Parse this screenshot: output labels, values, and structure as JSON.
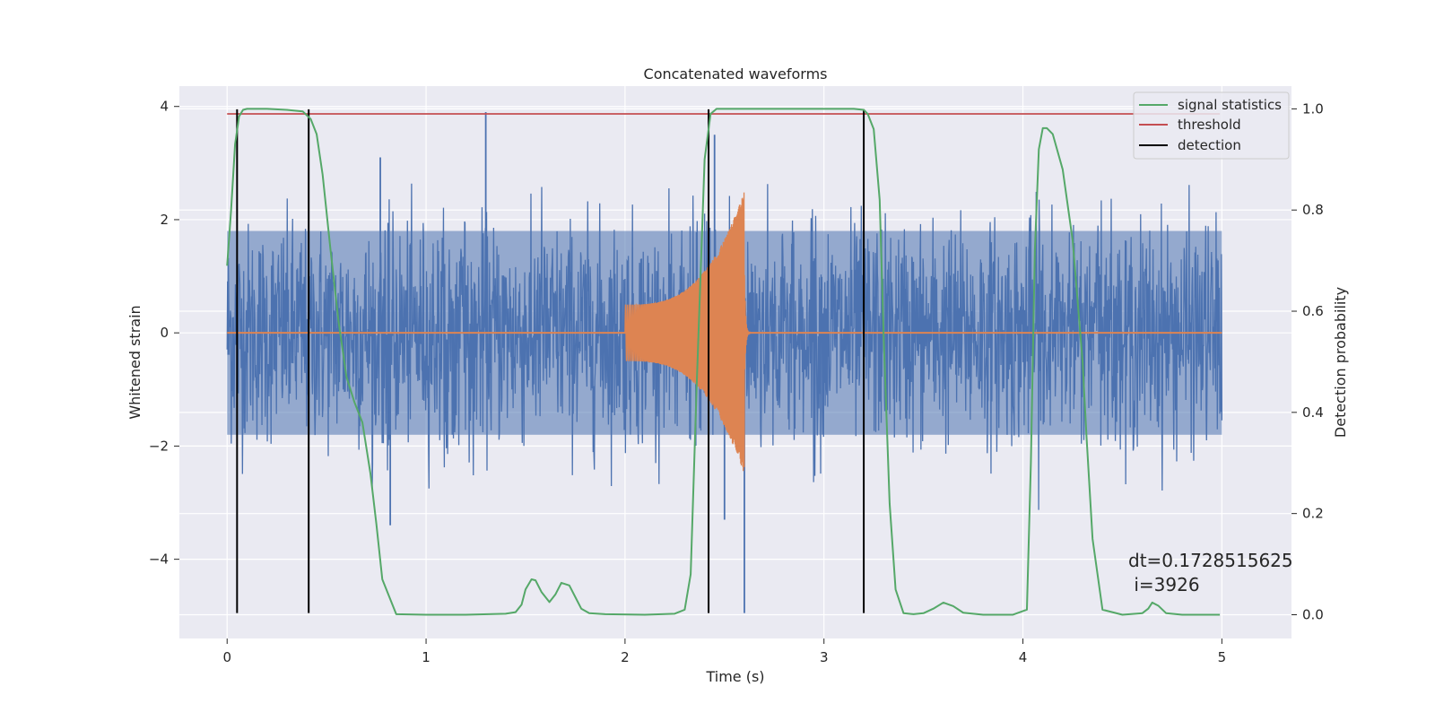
{
  "chart_data": {
    "type": "line",
    "title": "Concatenated waveforms",
    "xlabel": "Time (s)",
    "ylabel_left": "Whitened strain",
    "ylabel_right": "Detection probability",
    "xlim": [
      -0.24,
      5.35
    ],
    "ylim_left": [
      -5.4,
      4.36
    ],
    "ylim_right": [
      -0.047,
      1.045
    ],
    "xticks": [
      0,
      1,
      2,
      3,
      4,
      5
    ],
    "xtick_labels": [
      "0",
      "1",
      "2",
      "3",
      "4",
      "5"
    ],
    "yticks_left": [
      -4,
      -2,
      0,
      2,
      4
    ],
    "ytick_labels_left": [
      "−4",
      "−2",
      "0",
      "2",
      "4"
    ],
    "yticks_right": [
      0.0,
      0.2,
      0.4,
      0.6,
      0.8,
      1.0
    ],
    "ytick_labels_right": [
      "0.0",
      "0.2",
      "0.4",
      "0.6",
      "0.8",
      "1.0"
    ],
    "grid": true,
    "legend_position": "top-right",
    "legend": [
      {
        "label": "signal statistics",
        "color": "#55a868"
      },
      {
        "label": "threshold",
        "color": "#c44e52"
      },
      {
        "label": "detection",
        "color": "#000000"
      }
    ],
    "colors": {
      "strain": "#4c72b0",
      "injection": "#dd8452",
      "signal_statistics": "#55a868",
      "threshold": "#c44e52",
      "detection": "#000000",
      "axes_bg": "#eaeaf2",
      "grid": "#ffffff"
    },
    "series": [
      {
        "name": "signal statistics",
        "axis": "right",
        "x": [
          0.0,
          0.02,
          0.04,
          0.06,
          0.08,
          0.1,
          0.15,
          0.2,
          0.3,
          0.38,
          0.42,
          0.45,
          0.48,
          0.52,
          0.56,
          0.6,
          0.64,
          0.68,
          0.72,
          0.75,
          0.78,
          0.85,
          1.0,
          1.2,
          1.4,
          1.45,
          1.48,
          1.5,
          1.53,
          1.55,
          1.58,
          1.62,
          1.65,
          1.68,
          1.72,
          1.75,
          1.78,
          1.82,
          1.9,
          2.1,
          2.25,
          2.3,
          2.33,
          2.36,
          2.4,
          2.43,
          2.46,
          2.5,
          2.6,
          2.8,
          3.0,
          3.15,
          3.2,
          3.22,
          3.25,
          3.28,
          3.3,
          3.33,
          3.36,
          3.4,
          3.45,
          3.5,
          3.55,
          3.6,
          3.65,
          3.7,
          3.8,
          3.95,
          4.02,
          4.04,
          4.06,
          4.08,
          4.1,
          4.12,
          4.15,
          4.2,
          4.25,
          4.3,
          4.32,
          4.35,
          4.4,
          4.5,
          4.6,
          4.63,
          4.65,
          4.68,
          4.72,
          4.8,
          4.9,
          4.99
        ],
        "values": [
          0.69,
          0.8,
          0.93,
          0.985,
          0.998,
          1.0,
          1.0,
          1.0,
          0.998,
          0.995,
          0.98,
          0.95,
          0.87,
          0.72,
          0.58,
          0.47,
          0.42,
          0.38,
          0.28,
          0.18,
          0.07,
          0.001,
          0.0,
          0.0,
          0.002,
          0.005,
          0.02,
          0.05,
          0.07,
          0.068,
          0.045,
          0.025,
          0.04,
          0.063,
          0.058,
          0.035,
          0.012,
          0.003,
          0.001,
          0.0,
          0.002,
          0.01,
          0.08,
          0.45,
          0.9,
          0.99,
          1.0,
          1.0,
          1.0,
          1.0,
          1.0,
          1.0,
          0.998,
          0.99,
          0.96,
          0.82,
          0.55,
          0.22,
          0.05,
          0.003,
          0.001,
          0.003,
          0.012,
          0.024,
          0.017,
          0.004,
          0.0,
          0.0,
          0.01,
          0.3,
          0.72,
          0.92,
          0.962,
          0.962,
          0.95,
          0.88,
          0.74,
          0.5,
          0.35,
          0.15,
          0.01,
          0.0,
          0.003,
          0.012,
          0.024,
          0.018,
          0.003,
          0.0,
          0.0,
          0.0
        ]
      },
      {
        "name": "threshold",
        "axis": "right",
        "x": [
          0.0,
          4.99
        ],
        "values": [
          0.99,
          0.99
        ]
      },
      {
        "name": "detection",
        "axis": "left",
        "type": "vlines",
        "x": [
          0.05,
          0.41,
          2.42,
          3.2
        ],
        "y_range": [
          -4.95,
          3.95
        ]
      },
      {
        "axis": "left",
        "type": "noise",
        "x_range": [
          0.0,
          5.0
        ],
        "band": [
          -1.8,
          1.8
        ],
        "spikes": [
          {
            "x": 1.3,
            "y": 3.9
          },
          {
            "x": 0.77,
            "y": 3.1
          },
          {
            "x": 2.45,
            "y": 3.5
          },
          {
            "x": 2.6,
            "y": -4.95
          },
          {
            "x": 0.82,
            "y": -3.4
          },
          {
            "x": 2.5,
            "y": -3.3
          }
        ]
      },
      {
        "axis": "left",
        "type": "chirp",
        "x_range": [
          2.0,
          2.6
        ],
        "amplitude_start": 0.5,
        "amplitude_end": 2.5
      }
    ],
    "annotation": {
      "line1": "dt=0.1728515625",
      "line2": " i=3926"
    }
  }
}
